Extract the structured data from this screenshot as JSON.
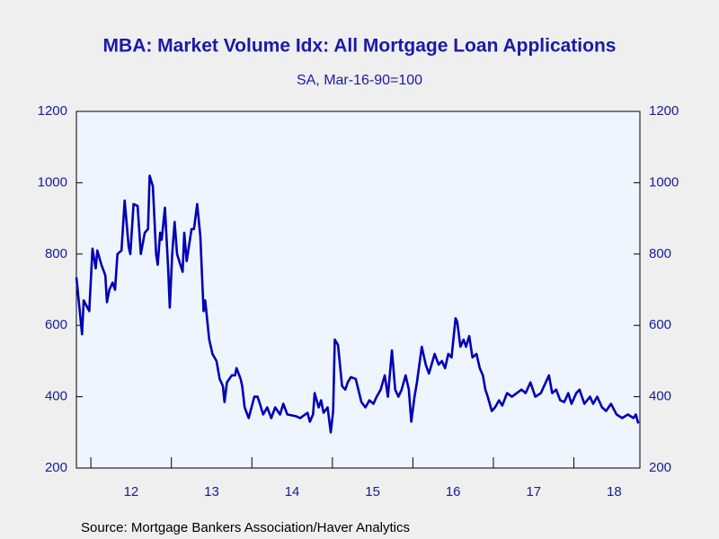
{
  "chart_data": {
    "type": "line",
    "title": "MBA: Market Volume Idx: All Mortgage Loan Applications",
    "subtitle": "SA, Mar-16-90=100",
    "source": "Source:  Mortgage Bankers Association/Haver Analytics",
    "x": [
      2011.82,
      2011.89,
      2011.91,
      2011.98,
      2012.02,
      2012.06,
      2012.08,
      2012.13,
      2012.18,
      2012.2,
      2012.23,
      2012.27,
      2012.3,
      2012.33,
      2012.38,
      2012.42,
      2012.47,
      2012.49,
      2012.53,
      2012.58,
      2012.62,
      2012.67,
      2012.71,
      2012.73,
      2012.77,
      2012.81,
      2012.83,
      2012.86,
      2012.88,
      2012.92,
      2012.96,
      2012.98,
      2013.01,
      2013.04,
      2013.07,
      2013.14,
      2013.16,
      2013.19,
      2013.25,
      2013.28,
      2013.32,
      2013.36,
      2013.4,
      2013.42,
      2013.47,
      2013.51,
      2013.56,
      2013.6,
      2013.64,
      2013.66,
      2013.69,
      2013.75,
      2013.79,
      2013.81,
      2013.86,
      2013.88,
      2013.91,
      2013.96,
      2014.03,
      2014.07,
      2014.1,
      2014.14,
      2014.19,
      2014.24,
      2014.29,
      2014.35,
      2014.39,
      2014.44,
      2014.55,
      2014.6,
      2014.69,
      2014.72,
      2014.76,
      2014.78,
      2014.83,
      2014.86,
      2014.89,
      2014.94,
      2014.98,
      2015.01,
      2015.03,
      2015.07,
      2015.12,
      2015.16,
      2015.19,
      2015.23,
      2015.29,
      2015.36,
      2015.41,
      2015.46,
      2015.51,
      2015.55,
      2015.6,
      2015.65,
      2015.69,
      2015.74,
      2015.78,
      2015.82,
      2015.86,
      2015.91,
      2015.95,
      2015.98,
      2016.02,
      2016.05,
      2016.11,
      2016.16,
      2016.2,
      2016.27,
      2016.32,
      2016.36,
      2016.4,
      2016.44,
      2016.48,
      2016.53,
      2016.55,
      2016.59,
      2016.63,
      2016.66,
      2016.7,
      2016.74,
      2016.79,
      2016.83,
      2016.87,
      2016.9,
      2016.93,
      2016.98,
      2017.02,
      2017.07,
      2017.11,
      2017.17,
      2017.23,
      2017.35,
      2017.4,
      2017.46,
      2017.52,
      2017.59,
      2017.69,
      2017.73,
      2017.78,
      2017.83,
      2017.88,
      2017.93,
      2017.97,
      2018.03,
      2018.07,
      2018.13,
      2018.2,
      2018.24,
      2018.29,
      2018.35,
      2018.4,
      2018.46,
      2018.53,
      2018.6,
      2018.67,
      2018.74,
      2018.77,
      2018.8
    ],
    "series": [
      {
        "name": "All Mortgage Loan Applications",
        "color": "#0000b4",
        "values": [
          735,
          575,
          670,
          640,
          815,
          760,
          810,
          770,
          740,
          665,
          700,
          720,
          700,
          800,
          810,
          950,
          820,
          800,
          940,
          935,
          800,
          860,
          870,
          1020,
          990,
          800,
          770,
          860,
          840,
          930,
          760,
          650,
          800,
          890,
          800,
          750,
          860,
          780,
          870,
          870,
          940,
          850,
          640,
          670,
          560,
          520,
          500,
          450,
          430,
          385,
          440,
          460,
          460,
          480,
          450,
          430,
          370,
          340,
          400,
          400,
          380,
          350,
          370,
          340,
          370,
          350,
          380,
          350,
          345,
          340,
          355,
          330,
          350,
          410,
          370,
          390,
          355,
          370,
          300,
          360,
          560,
          545,
          430,
          420,
          440,
          455,
          450,
          385,
          370,
          390,
          380,
          400,
          420,
          460,
          400,
          530,
          420,
          400,
          420,
          460,
          420,
          330,
          400,
          440,
          540,
          490,
          465,
          520,
          490,
          500,
          480,
          520,
          510,
          620,
          610,
          540,
          560,
          540,
          570,
          510,
          520,
          480,
          460,
          420,
          400,
          360,
          370,
          390,
          375,
          410,
          400,
          420,
          410,
          440,
          400,
          410,
          460,
          410,
          420,
          390,
          385,
          410,
          380,
          410,
          420,
          380,
          400,
          380,
          400,
          370,
          360,
          380,
          350,
          340,
          350,
          340,
          350,
          325
        ]
      }
    ],
    "xlim": [
      2011.82,
      2018.82
    ],
    "xticks": [
      {
        "value": 2012.5,
        "label": "12"
      },
      {
        "value": 2013.5,
        "label": "13"
      },
      {
        "value": 2014.5,
        "label": "14"
      },
      {
        "value": 2015.5,
        "label": "15"
      },
      {
        "value": 2016.5,
        "label": "16"
      },
      {
        "value": 2017.5,
        "label": "17"
      },
      {
        "value": 2018.5,
        "label": "18"
      }
    ],
    "ylim": [
      200,
      1200
    ],
    "yticks": [
      200,
      400,
      600,
      800,
      1000,
      1200
    ],
    "grid": false
  }
}
